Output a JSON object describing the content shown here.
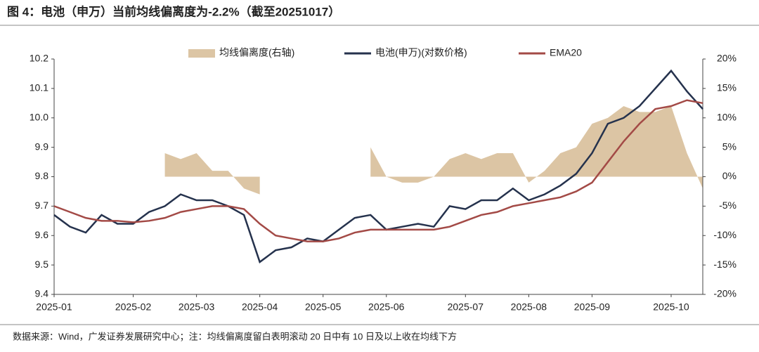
{
  "chart_data": {
    "type": "line",
    "title": "图 4：电池（申万）当前均线偏离度为-2.2%（截至20251017）",
    "source": "数据来源：Wind，广发证券发展研究中心；注：均线偏离度留白表明滚动 20 日中有 10 日及以上收在均线下方",
    "categories": [
      "2025-01",
      null,
      null,
      null,
      null,
      "2025-02",
      null,
      null,
      null,
      "2025-03",
      null,
      null,
      null,
      "2025-04",
      null,
      null,
      null,
      "2025-05",
      null,
      null,
      null,
      "2025-06",
      null,
      null,
      null,
      null,
      "2025-07",
      null,
      null,
      null,
      "2025-08",
      null,
      null,
      null,
      "2025-09",
      null,
      null,
      null,
      null,
      "2025-10",
      null,
      null
    ],
    "series": [
      {
        "name": "均线偏离度(右轴)",
        "color": "#dcc5a4",
        "axis": "y2",
        "kind": "area",
        "values": [
          null,
          null,
          null,
          null,
          null,
          null,
          null,
          4,
          3,
          4,
          1,
          1,
          -2,
          -3,
          null,
          null,
          null,
          null,
          null,
          null,
          5,
          0,
          -1,
          -1,
          0,
          3,
          4,
          3,
          4,
          4,
          -1,
          1,
          4,
          5,
          9,
          10,
          12,
          11,
          11,
          12,
          4,
          -2
        ]
      },
      {
        "name": "电池(申万)(对数价格)",
        "color": "#25324d",
        "values": [
          9.67,
          9.63,
          9.61,
          9.67,
          9.64,
          9.64,
          9.68,
          9.7,
          9.74,
          9.72,
          9.72,
          9.7,
          9.67,
          9.51,
          9.55,
          9.56,
          9.59,
          9.58,
          9.62,
          9.66,
          9.67,
          9.62,
          9.63,
          9.64,
          9.63,
          9.7,
          9.69,
          9.72,
          9.72,
          9.76,
          9.72,
          9.74,
          9.77,
          9.81,
          9.88,
          9.98,
          10.0,
          10.04,
          10.1,
          10.16,
          10.09,
          10.03
        ]
      },
      {
        "name": "EMA20",
        "color": "#a34a46",
        "values": [
          9.7,
          9.68,
          9.66,
          9.65,
          9.65,
          9.645,
          9.65,
          9.66,
          9.68,
          9.69,
          9.7,
          9.7,
          9.69,
          9.64,
          9.6,
          9.59,
          9.58,
          9.58,
          9.59,
          9.61,
          9.62,
          9.62,
          9.62,
          9.62,
          9.62,
          9.63,
          9.65,
          9.67,
          9.68,
          9.7,
          9.71,
          9.72,
          9.73,
          9.75,
          9.78,
          9.85,
          9.92,
          9.98,
          10.03,
          10.04,
          10.06,
          10.05
        ]
      }
    ],
    "ylim": [
      9.4,
      10.2
    ],
    "yticks": [
      9.4,
      9.5,
      9.6,
      9.7,
      9.8,
      9.9,
      {
        "value": 10,
        "label": "10.0"
      },
      10.1,
      10.2
    ],
    "y2lim": [
      -20,
      20
    ],
    "y2ticks": [
      {
        "value": -20,
        "label": "-20%"
      },
      {
        "value": -15,
        "label": "-15%"
      },
      {
        "value": -10,
        "label": "-10%"
      },
      {
        "value": -5,
        "label": "-5%"
      },
      {
        "value": 0,
        "label": "0%"
      },
      {
        "value": 5,
        "label": "5%"
      },
      {
        "value": 10,
        "label": "10%"
      },
      {
        "value": 15,
        "label": "15%"
      },
      {
        "value": 20,
        "label": "20%"
      }
    ],
    "legend": "top"
  }
}
